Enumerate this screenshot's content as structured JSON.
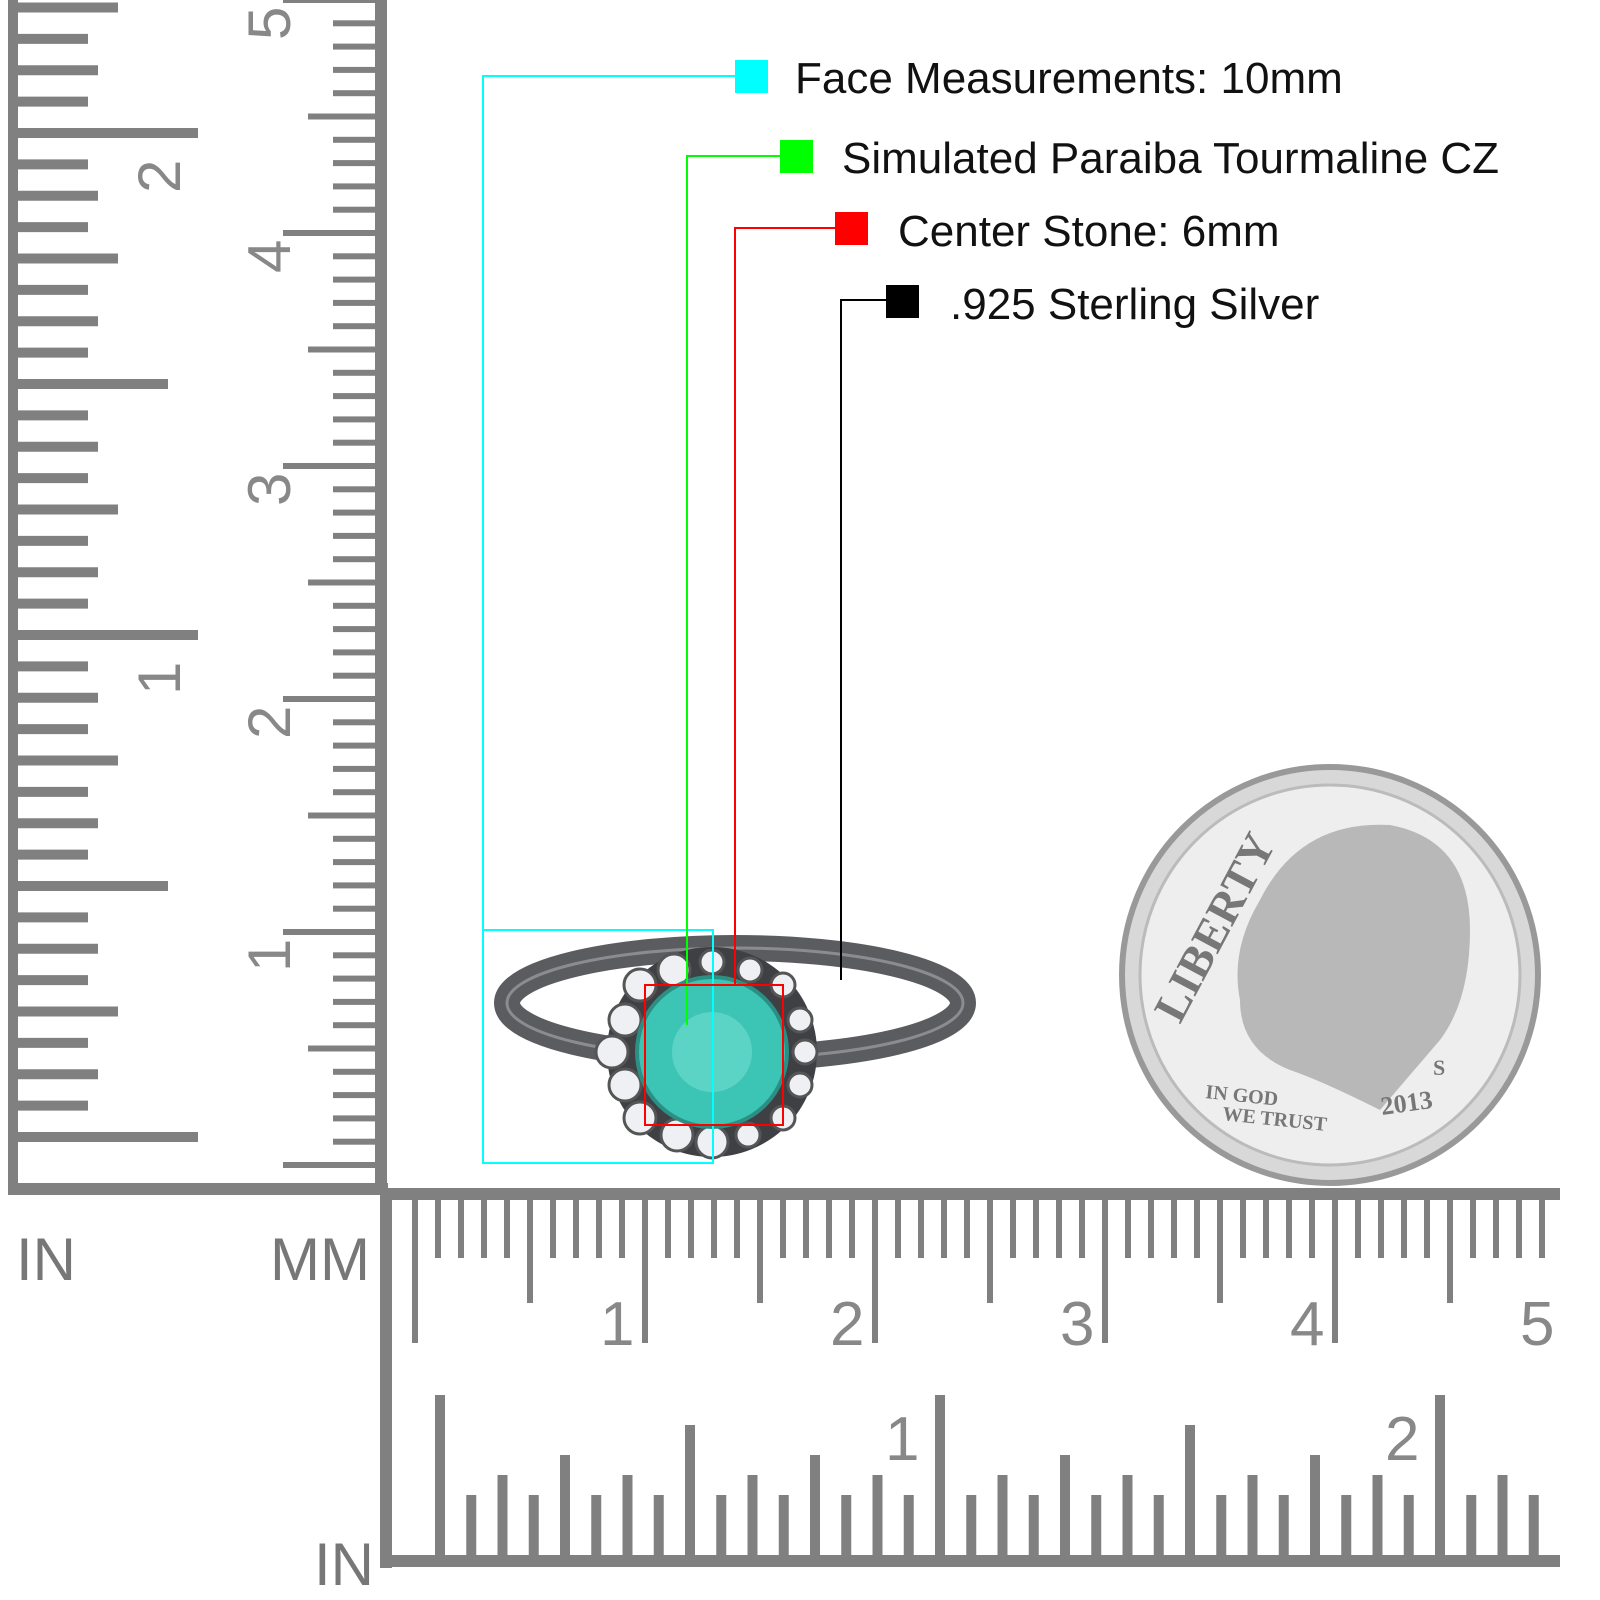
{
  "legend": [
    {
      "label": "Face Measurements: 10mm",
      "color": "#00ffff"
    },
    {
      "label": "Simulated Paraiba Tourmaline CZ",
      "color": "#00ff00"
    },
    {
      "label": "Center Stone: 6mm",
      "color": "#ff0000"
    },
    {
      "label": ".925 Sterling Silver",
      "color": "#000000"
    }
  ],
  "rulers": {
    "left_unit_in": "IN",
    "left_unit_mm": "MM",
    "bottom_unit_in": "IN",
    "cm_labels": [
      "1",
      "2",
      "3",
      "4",
      "5"
    ],
    "in_labels": [
      "1",
      "2"
    ],
    "ruler_color": "#808080"
  },
  "coin": {
    "liberty": "LIBERTY",
    "motto_line1": "IN GOD",
    "motto_line2": "WE TRUST",
    "year": "2013",
    "mint_mark": "S"
  },
  "colors": {
    "stone": "#3cc4b4",
    "metal": "#5a5c60"
  }
}
